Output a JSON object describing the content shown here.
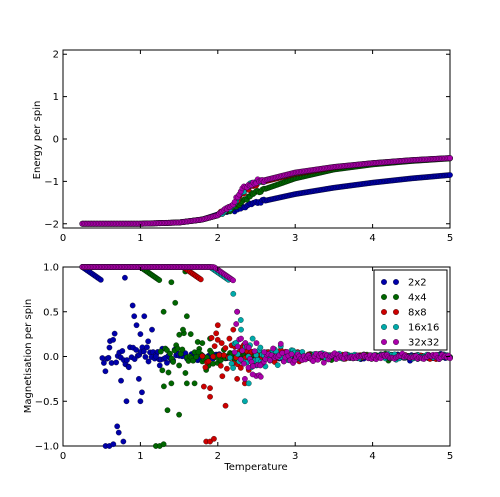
{
  "figure": {
    "top_panel": {
      "ylabel": "Energy per spin",
      "xlabel": "",
      "xticks": [
        "0",
        "1",
        "2",
        "3",
        "4",
        "5"
      ],
      "yticks": [
        "−2",
        "−1",
        "0",
        "1",
        "2"
      ]
    },
    "bottom_panel": {
      "ylabel": "Magnetisation per spin",
      "xlabel": "Temperature",
      "xticks": [
        "0",
        "1",
        "2",
        "3",
        "4",
        "5"
      ],
      "yticks": [
        "−1.0",
        "−0.5",
        "0.0",
        "0.5",
        "1.0"
      ]
    },
    "legend": [
      "2x2",
      "4x4",
      "8x8",
      "16x16",
      "32x32"
    ]
  },
  "chart_data": [
    {
      "type": "scatter",
      "panel": "top",
      "xlabel": "",
      "ylabel": "Energy per spin",
      "xlim": [
        0,
        5
      ],
      "ylim": [
        -2.1,
        2.1
      ],
      "grid": false,
      "x_range": [
        0.25,
        5.0
      ],
      "series": [
        {
          "name": "2x2",
          "color": "#0000aa",
          "curve": [
            [
              0.25,
              -2.0
            ],
            [
              1.0,
              -2.0
            ],
            [
              1.5,
              -1.97
            ],
            [
              1.8,
              -1.9
            ],
            [
              2.0,
              -1.78
            ],
            [
              2.5,
              -1.5
            ],
            [
              3.0,
              -1.3
            ],
            [
              3.5,
              -1.15
            ],
            [
              4.0,
              -1.03
            ],
            [
              4.5,
              -0.93
            ],
            [
              5.0,
              -0.85
            ]
          ]
        },
        {
          "name": "4x4",
          "color": "#006600",
          "curve": [
            [
              0.25,
              -2.0
            ],
            [
              1.0,
              -2.0
            ],
            [
              1.5,
              -1.97
            ],
            [
              1.8,
              -1.9
            ],
            [
              2.0,
              -1.8
            ],
            [
              2.2,
              -1.6
            ],
            [
              2.5,
              -1.25
            ],
            [
              3.0,
              -0.93
            ],
            [
              3.5,
              -0.72
            ],
            [
              4.0,
              -0.6
            ],
            [
              4.5,
              -0.52
            ],
            [
              5.0,
              -0.46
            ]
          ]
        },
        {
          "name": "8x8",
          "color": "#cc0000",
          "curve": [
            [
              0.25,
              -2.0
            ],
            [
              1.0,
              -2.0
            ],
            [
              1.5,
              -1.97
            ],
            [
              1.8,
              -1.9
            ],
            [
              2.0,
              -1.8
            ],
            [
              2.2,
              -1.55
            ],
            [
              2.3,
              -1.3
            ],
            [
              2.5,
              -1.05
            ],
            [
              3.0,
              -0.82
            ],
            [
              3.5,
              -0.67
            ],
            [
              4.0,
              -0.57
            ],
            [
              4.5,
              -0.5
            ],
            [
              5.0,
              -0.45
            ]
          ]
        },
        {
          "name": "16x16",
          "color": "#00aaaa",
          "curve": [
            [
              0.25,
              -2.0
            ],
            [
              1.0,
              -2.0
            ],
            [
              1.5,
              -1.97
            ],
            [
              1.8,
              -1.9
            ],
            [
              2.0,
              -1.8
            ],
            [
              2.2,
              -1.55
            ],
            [
              2.3,
              -1.25
            ],
            [
              2.4,
              -1.1
            ],
            [
              2.5,
              -1.02
            ],
            [
              3.0,
              -0.8
            ],
            [
              3.5,
              -0.66
            ],
            [
              4.0,
              -0.57
            ],
            [
              4.5,
              -0.5
            ],
            [
              5.0,
              -0.45
            ]
          ]
        },
        {
          "name": "32x32",
          "color": "#aa00aa",
          "curve": [
            [
              0.25,
              -2.0
            ],
            [
              1.0,
              -2.0
            ],
            [
              1.5,
              -1.97
            ],
            [
              1.8,
              -1.9
            ],
            [
              2.0,
              -1.8
            ],
            [
              2.2,
              -1.55
            ],
            [
              2.3,
              -1.2
            ],
            [
              2.4,
              -1.1
            ],
            [
              2.5,
              -1.02
            ],
            [
              3.0,
              -0.79
            ],
            [
              3.5,
              -0.66
            ],
            [
              4.0,
              -0.57
            ],
            [
              4.5,
              -0.5
            ],
            [
              5.0,
              -0.45
            ]
          ]
        }
      ]
    },
    {
      "type": "scatter",
      "panel": "bottom",
      "xlabel": "Temperature",
      "ylabel": "Magnetisation per spin",
      "xlim": [
        0,
        5
      ],
      "ylim": [
        -1.0,
        1.0
      ],
      "grid": false,
      "legend_position": "top-right",
      "x_range": [
        0.25,
        5.0
      ],
      "series": [
        {
          "name": "2x2",
          "color": "#0000aa",
          "ordered_until": 0.5,
          "transition_start": 0.5,
          "noise_end": 5.0,
          "scatter_points": [
            [
              0.55,
              -1.0
            ],
            [
              0.6,
              -1.0
            ],
            [
              0.65,
              -0.98
            ],
            [
              0.7,
              -0.78
            ],
            [
              0.72,
              -0.85
            ],
            [
              0.78,
              -0.95
            ],
            [
              0.8,
              0.88
            ],
            [
              0.85,
              -0.12
            ],
            [
              0.9,
              0.57
            ],
            [
              0.92,
              0.45
            ],
            [
              0.95,
              0.35
            ],
            [
              1.0,
              0.25
            ],
            [
              0.75,
              -0.27
            ],
            [
              0.82,
              -0.5
            ],
            [
              0.98,
              -0.25
            ],
            [
              1.02,
              -0.4
            ],
            [
              1.05,
              0.45
            ],
            [
              1.1,
              0.17
            ],
            [
              0.6,
              0.1
            ],
            [
              1.0,
              -0.5
            ],
            [
              1.15,
              0.3
            ],
            [
              1.2,
              0.0
            ],
            [
              1.25,
              -0.1
            ]
          ]
        },
        {
          "name": "4x4",
          "color": "#006600",
          "ordered_until": 1.25,
          "transition_start": 1.25,
          "noise_end": 5.0,
          "scatter_points": [
            [
              1.2,
              -1.0
            ],
            [
              1.25,
              -1.0
            ],
            [
              1.3,
              -0.98
            ],
            [
              1.35,
              -0.6
            ],
            [
              1.4,
              0.83
            ],
            [
              1.45,
              0.6
            ],
            [
              1.5,
              -0.1
            ],
            [
              1.55,
              0.3
            ],
            [
              1.6,
              0.45
            ],
            [
              1.65,
              0.25
            ],
            [
              1.7,
              -0.3
            ],
            [
              1.75,
              0.05
            ],
            [
              1.8,
              0.15
            ],
            [
              1.85,
              -0.15
            ],
            [
              1.9,
              0.2
            ],
            [
              1.5,
              -0.65
            ],
            [
              1.6,
              -0.3
            ],
            [
              1.3,
              0.5
            ],
            [
              1.4,
              -0.3
            ],
            [
              1.58,
              0.95
            ]
          ]
        },
        {
          "name": "8x8",
          "color": "#cc0000",
          "ordered_until": 1.85,
          "transition_start": 1.8,
          "noise_end": 5.0,
          "scatter_points": [
            [
              1.85,
              -0.95
            ],
            [
              1.9,
              -0.95
            ],
            [
              1.95,
              -0.92
            ],
            [
              2.0,
              0.35
            ],
            [
              2.05,
              0.15
            ],
            [
              2.1,
              -0.55
            ],
            [
              2.15,
              0.2
            ],
            [
              2.2,
              0.3
            ],
            [
              2.25,
              -0.25
            ],
            [
              2.3,
              0.1
            ],
            [
              2.35,
              -0.3
            ],
            [
              2.4,
              -0.15
            ],
            [
              1.9,
              -0.45
            ]
          ]
        },
        {
          "name": "16x16",
          "color": "#00aaaa",
          "ordered_until": 2.1,
          "transition_start": 2.15,
          "noise_end": 5.0,
          "scatter_points": [
            [
              2.2,
              0.7
            ],
            [
              2.25,
              0.5
            ],
            [
              2.3,
              0.3
            ],
            [
              2.35,
              -0.5
            ],
            [
              2.4,
              -0.3
            ],
            [
              2.45,
              0.2
            ],
            [
              2.5,
              -0.1
            ],
            [
              2.55,
              0.1
            ]
          ]
        },
        {
          "name": "32x32",
          "color": "#aa00aa",
          "ordered_until": 2.2,
          "transition_start": 2.2,
          "noise_end": 5.0,
          "scatter_points": [
            [
              2.25,
              0.5
            ],
            [
              2.3,
              0.2
            ],
            [
              2.35,
              -0.25
            ],
            [
              2.4,
              0.1
            ],
            [
              2.45,
              -0.2
            ],
            [
              2.5,
              0.15
            ],
            [
              2.55,
              -0.1
            ],
            [
              2.6,
              0.05
            ]
          ]
        }
      ]
    }
  ]
}
